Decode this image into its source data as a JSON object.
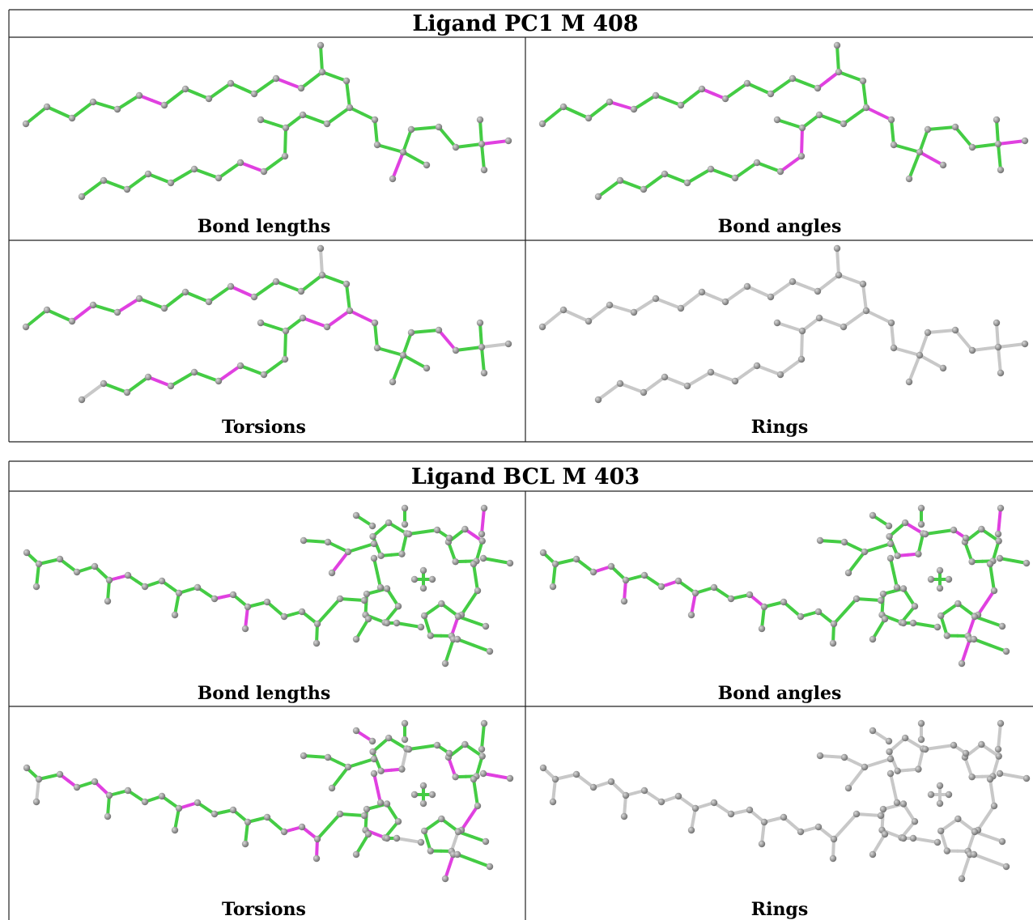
{
  "tables": [
    {
      "title": "Ligand PC1 M 408",
      "panels": [
        {
          "caption": "Bond lengths"
        },
        {
          "caption": "Bond angles"
        },
        {
          "caption": "Torsions"
        },
        {
          "caption": "Rings"
        }
      ]
    },
    {
      "title": "Ligand BCL M 403",
      "panels": [
        {
          "caption": "Bond lengths"
        },
        {
          "caption": "Bond angles"
        },
        {
          "caption": "Torsions"
        },
        {
          "caption": "Rings"
        }
      ]
    }
  ]
}
